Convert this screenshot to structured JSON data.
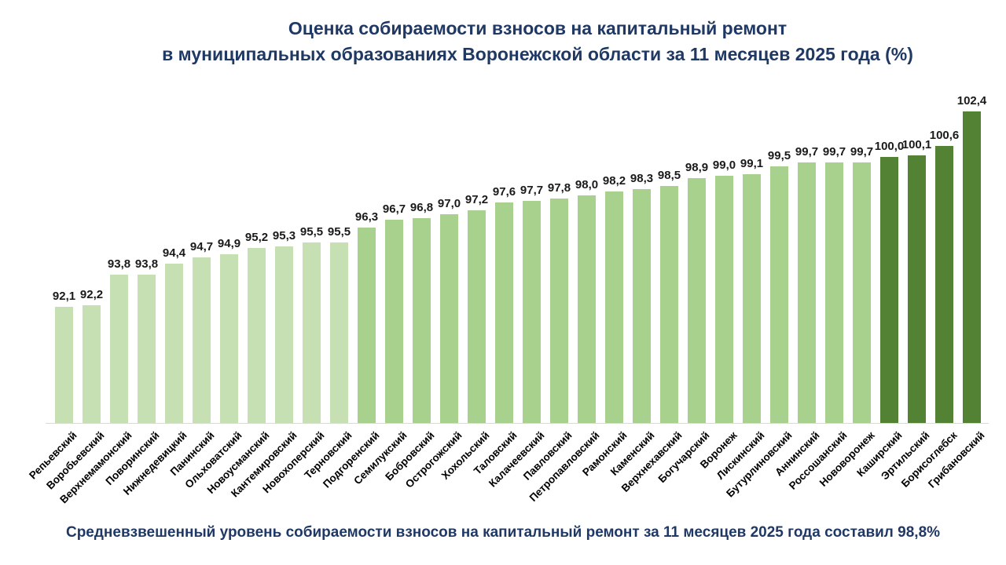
{
  "title": {
    "line1": "Оценка собираемости взносов на капитальный ремонт",
    "line2": "в муниципальных образованиях Воронежской области за 11 месяцев 2025 года (%)"
  },
  "footer": "Средневзвешенный уровень собираемости взносов на капитальный ремонт за 11 месяцев 2025 года составил 98,8%",
  "summary_value": "98,8%",
  "colors": {
    "title_text": "#1F3864",
    "footer_text": "#1F3864",
    "bar_light": "#C6E0B4",
    "bar_medium": "#A9D18E",
    "bar_dark": "#548235",
    "axis_line": "#D9D9D9",
    "value_label": "#1A1A1A",
    "category_label": "#000000"
  },
  "chart_data": {
    "type": "bar",
    "title": "Оценка собираемости взносов на капитальный ремонт в муниципальных образованиях Воронежской области за 11 месяцев 2025 года (%)",
    "xlabel": "",
    "ylabel": "",
    "ylim": [
      86,
      103
    ],
    "grid": false,
    "legend_position": "none",
    "value_label_format": "one decimal, comma separator",
    "categories": [
      "Репьевский",
      "Воробьевский",
      "Верхнемамонский",
      "Поворинский",
      "Нижнедевицкий",
      "Панинский",
      "Ольховатский",
      "Новоусманский",
      "Кантемировский",
      "Новохоперский",
      "Терновский",
      "Подгоренский",
      "Семилукский",
      "Бобровский",
      "Острогожский",
      "Хохольский",
      "Таловский",
      "Калачеевский",
      "Павловский",
      "Петропавловский",
      "Рамонский",
      "Каменский",
      "Верхнехавский",
      "Богучарский",
      "Воронеж",
      "Лискинский",
      "Бутурлиновский",
      "Аннинский",
      "Россошанский",
      "Нововоронеж",
      "Каширский",
      "Эртильский",
      "Борисоглебск",
      "Грибановский"
    ],
    "values": [
      92.1,
      92.2,
      93.8,
      93.8,
      94.4,
      94.7,
      94.9,
      95.2,
      95.3,
      95.5,
      95.5,
      96.3,
      96.7,
      96.8,
      97.0,
      97.2,
      97.6,
      97.7,
      97.8,
      98.0,
      98.2,
      98.3,
      98.5,
      98.9,
      99.0,
      99.1,
      99.5,
      99.7,
      99.7,
      99.7,
      100.0,
      100.1,
      100.6,
      102.4
    ],
    "value_labels": [
      "92,1",
      "92,2",
      "93,8",
      "93,8",
      "94,4",
      "94,7",
      "94,9",
      "95,2",
      "95,3",
      "95,5",
      "95,5",
      "96,3",
      "96,7",
      "96,8",
      "97,0",
      "97,2",
      "97,6",
      "97,7",
      "97,8",
      "98,0",
      "98,2",
      "98,3",
      "98,5",
      "98,9",
      "99,0",
      "99,1",
      "99,5",
      "99,7",
      "99,7",
      "99,7",
      "100,0",
      "100,1",
      "100,6",
      "102,4"
    ],
    "color_groups": [
      "light",
      "light",
      "light",
      "light",
      "light",
      "light",
      "light",
      "light",
      "light",
      "light",
      "light",
      "medium",
      "medium",
      "medium",
      "medium",
      "medium",
      "medium",
      "medium",
      "medium",
      "medium",
      "medium",
      "medium",
      "medium",
      "medium",
      "medium",
      "medium",
      "medium",
      "medium",
      "medium",
      "medium",
      "dark",
      "dark",
      "dark",
      "dark"
    ],
    "color_rule": {
      "dark_min": 100.0,
      "medium_min": 96.0
    }
  }
}
